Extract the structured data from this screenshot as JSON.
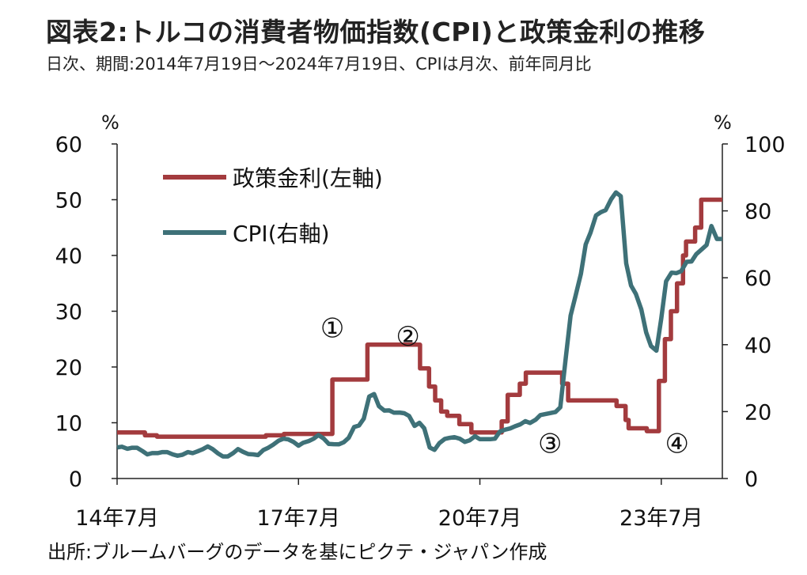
{
  "title": "図表2:トルコの消費者物価指数(CPI)と政策金利の推移",
  "subtitle": "日次、期間:2014年7月19日〜2024年7月19日、CPIは月次、前年同月比",
  "source": "出所:ブルームバーグのデータを基にピクテ・ジャパン作成",
  "chart_data": {
    "type": "line",
    "y_left_unit": "%",
    "y_right_unit": "%",
    "y_left_range": [
      0,
      60
    ],
    "y_right_range": [
      0,
      100
    ],
    "y_left_ticks": [
      "0",
      "10",
      "20",
      "30",
      "40",
      "50",
      "60"
    ],
    "y_right_ticks": [
      "0",
      "20",
      "40",
      "60",
      "80",
      "100"
    ],
    "x_range": [
      2014.54,
      2024.55
    ],
    "x_ticks": [
      {
        "x": 2014.54,
        "label": "14年7月"
      },
      {
        "x": 2017.54,
        "label": "17年7月"
      },
      {
        "x": 2020.54,
        "label": "20年7月"
      },
      {
        "x": 2023.54,
        "label": "23年7月"
      }
    ],
    "legend_position": "top-left",
    "legend": [
      {
        "label": "政策金利(左軸)",
        "color": "#a33b3e"
      },
      {
        "label": "CPI(右軸)",
        "color": "#3e7178"
      }
    ],
    "annotations": [
      {
        "text": "①",
        "x": 2018.1,
        "y_left": 27
      },
      {
        "text": "②",
        "x": 2019.35,
        "y_left": 25.5
      },
      {
        "text": "③",
        "x": 2021.7,
        "y_left": 6.3
      },
      {
        "text": "④",
        "x": 2023.8,
        "y_left": 6.3
      }
    ],
    "series": [
      {
        "name": "政策金利(左軸)",
        "axis": "left",
        "color": "#a33b3e",
        "step": true,
        "x": [
          2014.54,
          2014.9,
          2015.0,
          2015.2,
          2016.0,
          2016.8,
          2017.0,
          2017.3,
          2017.6,
          2018.0,
          2018.1,
          2018.4,
          2018.68,
          2019.45,
          2019.55,
          2019.7,
          2019.8,
          2019.9,
          2020.0,
          2020.2,
          2020.4,
          2020.7,
          2020.9,
          2021.0,
          2021.2,
          2021.3,
          2021.5,
          2021.9,
          2022.0,
          2022.2,
          2022.3,
          2022.4,
          2022.5,
          2022.8,
          2022.95,
          2023.0,
          2023.3,
          2023.45,
          2023.5,
          2023.6,
          2023.7,
          2023.8,
          2023.9,
          2023.95,
          2024.1,
          2024.2,
          2024.35,
          2024.55
        ],
        "values": [
          8.25,
          8.25,
          7.75,
          7.5,
          7.5,
          7.5,
          7.75,
          8.0,
          8.0,
          8.0,
          17.75,
          17.75,
          24.0,
          24.0,
          19.75,
          16.5,
          14.0,
          12.0,
          11.25,
          9.75,
          8.25,
          8.25,
          10.25,
          15.0,
          17.0,
          19.0,
          19.0,
          17.0,
          14.0,
          14.0,
          14.0,
          14.0,
          14.0,
          13.0,
          10.5,
          9.0,
          8.5,
          8.5,
          17.5,
          25.0,
          30.0,
          35.0,
          40.0,
          42.5,
          45.0,
          50.0,
          50.0,
          50.0
        ]
      },
      {
        "name": "CPI(右軸)",
        "axis": "right",
        "color": "#3e7178",
        "x": [
          2014.54,
          2014.62,
          2014.71,
          2014.79,
          2014.87,
          2014.96,
          2015.04,
          2015.12,
          2015.21,
          2015.29,
          2015.37,
          2015.46,
          2015.54,
          2015.62,
          2015.71,
          2015.79,
          2015.87,
          2015.96,
          2016.04,
          2016.12,
          2016.21,
          2016.29,
          2016.37,
          2016.46,
          2016.54,
          2016.62,
          2016.71,
          2016.79,
          2016.87,
          2016.96,
          2017.04,
          2017.12,
          2017.21,
          2017.29,
          2017.37,
          2017.46,
          2017.54,
          2017.62,
          2017.71,
          2017.79,
          2017.87,
          2017.96,
          2018.04,
          2018.12,
          2018.21,
          2018.29,
          2018.37,
          2018.46,
          2018.54,
          2018.62,
          2018.71,
          2018.79,
          2018.87,
          2018.96,
          2019.04,
          2019.12,
          2019.21,
          2019.29,
          2019.37,
          2019.46,
          2019.54,
          2019.62,
          2019.71,
          2019.79,
          2019.87,
          2019.96,
          2020.04,
          2020.12,
          2020.21,
          2020.29,
          2020.37,
          2020.46,
          2020.54,
          2020.62,
          2020.71,
          2020.79,
          2020.87,
          2020.96,
          2021.04,
          2021.12,
          2021.21,
          2021.29,
          2021.37,
          2021.46,
          2021.54,
          2021.62,
          2021.71,
          2021.79,
          2021.87,
          2021.96,
          2022.04,
          2022.12,
          2022.21,
          2022.29,
          2022.37,
          2022.46,
          2022.54,
          2022.62,
          2022.71,
          2022.79,
          2022.87,
          2022.96,
          2023.04,
          2023.12,
          2023.21,
          2023.29,
          2023.37,
          2023.46,
          2023.54,
          2023.62,
          2023.71,
          2023.79,
          2023.87,
          2023.96,
          2024.04,
          2024.12,
          2024.21,
          2024.29,
          2024.37,
          2024.46,
          2024.55
        ],
        "values": [
          9.3,
          9.5,
          8.9,
          9.2,
          9.2,
          8.2,
          7.2,
          7.6,
          7.6,
          7.9,
          7.9,
          7.2,
          6.8,
          7.1,
          7.9,
          7.6,
          8.1,
          8.8,
          9.6,
          8.8,
          7.5,
          6.6,
          6.6,
          7.6,
          8.8,
          8.0,
          7.3,
          7.2,
          7.0,
          8.5,
          9.2,
          10.1,
          11.3,
          11.9,
          11.7,
          10.9,
          9.8,
          10.7,
          11.2,
          11.9,
          12.98,
          11.9,
          10.35,
          10.26,
          10.23,
          10.85,
          12.15,
          15.39,
          15.85,
          17.9,
          24.52,
          25.24,
          21.62,
          20.3,
          20.35,
          19.67,
          19.71,
          19.5,
          18.71,
          15.72,
          16.65,
          15.01,
          9.26,
          8.55,
          10.56,
          11.84,
          12.15,
          12.37,
          11.86,
          10.94,
          11.39,
          12.62,
          11.76,
          11.77,
          11.75,
          11.89,
          14.03,
          14.6,
          14.97,
          15.61,
          16.19,
          17.14,
          16.59,
          17.53,
          18.95,
          19.25,
          19.58,
          19.89,
          21.31,
          36.08,
          48.69,
          54.44,
          61.14,
          69.97,
          73.5,
          78.62,
          79.6,
          80.21,
          83.45,
          85.51,
          84.39,
          64.27,
          57.68,
          55.18,
          50.51,
          43.68,
          39.59,
          38.21,
          47.83,
          58.94,
          61.53,
          61.36,
          61.98,
          64.77,
          64.86,
          67.07,
          68.5,
          69.8,
          75.45,
          71.6,
          71.6
        ]
      }
    ]
  }
}
